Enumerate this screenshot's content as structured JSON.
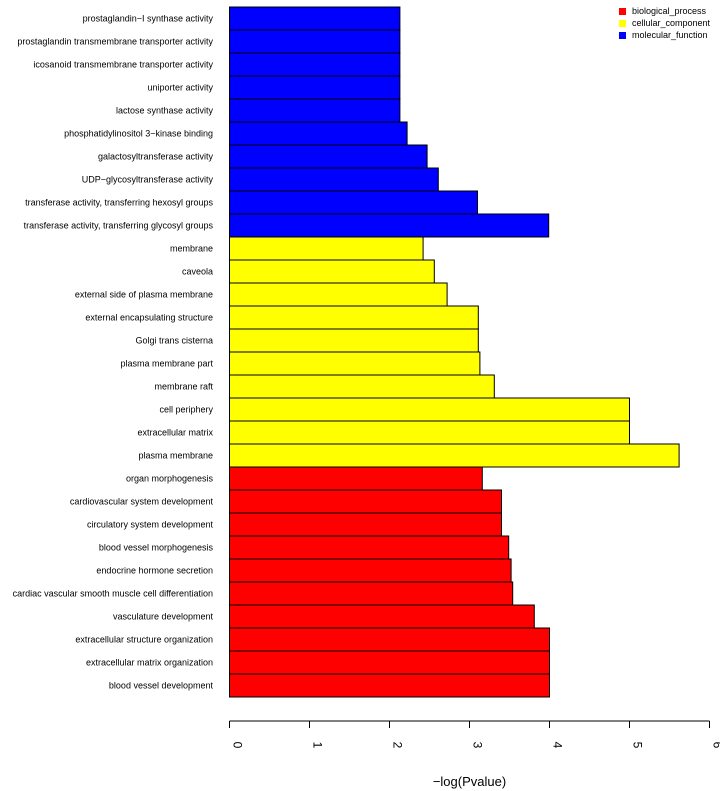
{
  "chart_data": {
    "type": "bar",
    "orientation": "horizontal",
    "xlabel": "−log(Pvalue)",
    "ylabel": "",
    "xlim": [
      0,
      6
    ],
    "xticks": [
      "0",
      "1",
      "2",
      "3",
      "4",
      "5",
      "6"
    ],
    "grid": false,
    "legend_position": "top-right",
    "legend": [
      {
        "name": "biological_process",
        "color": "#ff0000"
      },
      {
        "name": "cellular_component",
        "color": "#ffff00"
      },
      {
        "name": "molecular_function",
        "color": "#0000ff"
      }
    ],
    "bars": [
      {
        "label": "prostaglandin−I synthase activity",
        "value": 2.13,
        "group": "molecular_function"
      },
      {
        "label": "prostaglandin transmembrane transporter activity",
        "value": 2.13,
        "group": "molecular_function"
      },
      {
        "label": "icosanoid transmembrane transporter activity",
        "value": 2.13,
        "group": "molecular_function"
      },
      {
        "label": "uniporter activity",
        "value": 2.13,
        "group": "molecular_function"
      },
      {
        "label": "lactose synthase activity",
        "value": 2.13,
        "group": "molecular_function"
      },
      {
        "label": "phosphatidylinositol 3−kinase binding",
        "value": 2.22,
        "group": "molecular_function"
      },
      {
        "label": "galactosyltransferase activity",
        "value": 2.47,
        "group": "molecular_function"
      },
      {
        "label": "UDP−glycosyltransferase activity",
        "value": 2.61,
        "group": "molecular_function"
      },
      {
        "label": "transferase activity, transferring hexosyl groups",
        "value": 3.1,
        "group": "molecular_function"
      },
      {
        "label": "transferase activity, transferring glycosyl groups",
        "value": 3.99,
        "group": "molecular_function"
      },
      {
        "label": "membrane",
        "value": 2.42,
        "group": "cellular_component"
      },
      {
        "label": "caveola",
        "value": 2.56,
        "group": "cellular_component"
      },
      {
        "label": "external side of plasma membrane",
        "value": 2.72,
        "group": "cellular_component"
      },
      {
        "label": "external encapsulating structure",
        "value": 3.11,
        "group": "cellular_component"
      },
      {
        "label": "Golgi trans cisterna",
        "value": 3.11,
        "group": "cellular_component"
      },
      {
        "label": "plasma membrane part",
        "value": 3.13,
        "group": "cellular_component"
      },
      {
        "label": "membrane raft",
        "value": 3.31,
        "group": "cellular_component"
      },
      {
        "label": "cell periphery",
        "value": 5.0,
        "group": "cellular_component"
      },
      {
        "label": "extracellular matrix",
        "value": 5.0,
        "group": "cellular_component"
      },
      {
        "label": "plasma membrane",
        "value": 5.62,
        "group": "cellular_component"
      },
      {
        "label": "organ morphogenesis",
        "value": 3.16,
        "group": "biological_process"
      },
      {
        "label": "cardiovascular system development",
        "value": 3.4,
        "group": "biological_process"
      },
      {
        "label": "circulatory system development",
        "value": 3.4,
        "group": "biological_process"
      },
      {
        "label": "blood vessel morphogenesis",
        "value": 3.49,
        "group": "biological_process"
      },
      {
        "label": "endocrine hormone secretion",
        "value": 3.52,
        "group": "biological_process"
      },
      {
        "label": "cardiac vascular smooth muscle cell differentiation",
        "value": 3.54,
        "group": "biological_process"
      },
      {
        "label": "vasculature development",
        "value": 3.81,
        "group": "biological_process"
      },
      {
        "label": "extracellular structure organization",
        "value": 4.0,
        "group": "biological_process"
      },
      {
        "label": "extracellular matrix organization",
        "value": 4.0,
        "group": "biological_process"
      },
      {
        "label": "blood vessel development",
        "value": 4.0,
        "group": "biological_process"
      }
    ]
  }
}
